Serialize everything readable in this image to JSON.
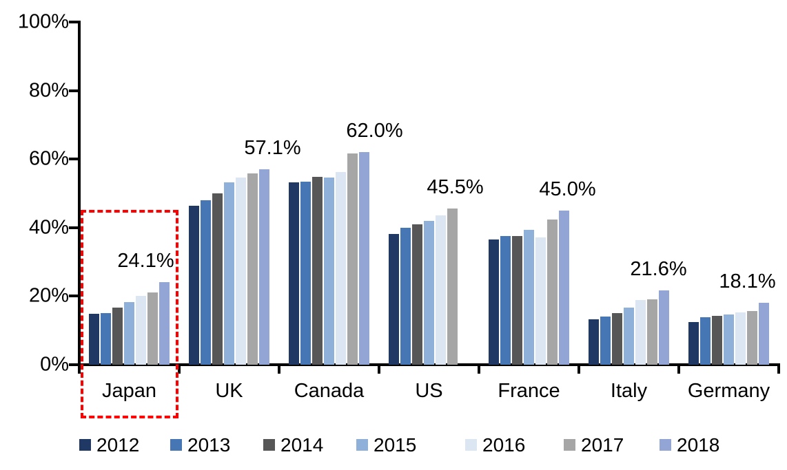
{
  "chart_data": {
    "type": "bar",
    "title": "",
    "categories": [
      "Japan",
      "UK",
      "Canada",
      "US",
      "France",
      "Italy",
      "Germany"
    ],
    "series": [
      {
        "name": "2012",
        "color": "#1F3864",
        "values": [
          14.8,
          46.4,
          53.2,
          38.2,
          36.5,
          13.3,
          12.4
        ]
      },
      {
        "name": "2013",
        "color": "#4677B4",
        "values": [
          15.0,
          47.9,
          53.5,
          40.0,
          37.6,
          14.0,
          13.8
        ]
      },
      {
        "name": "2014",
        "color": "#575757",
        "values": [
          16.6,
          50.0,
          54.9,
          40.9,
          37.5,
          15.1,
          14.2
        ]
      },
      {
        "name": "2015",
        "color": "#8FB0D8",
        "values": [
          18.2,
          53.2,
          54.6,
          42.0,
          39.3,
          16.7,
          14.6
        ]
      },
      {
        "name": "2016",
        "color": "#DCE5F2",
        "values": [
          20.0,
          54.6,
          56.2,
          43.5,
          37.2,
          18.8,
          15.3
        ]
      },
      {
        "name": "2017",
        "color": "#A6A6A6",
        "values": [
          21.1,
          55.8,
          61.6,
          45.5,
          42.4,
          19.0,
          15.7
        ]
      },
      {
        "name": "2018",
        "color": "#93A5D4",
        "values": [
          24.1,
          57.1,
          62.0,
          null,
          45.0,
          21.6,
          18.1
        ]
      }
    ],
    "value_labels": [
      "24.1%",
      "57.1%",
      "62.0%",
      "45.5%",
      "45.0%",
      "21.6%",
      "18.1%"
    ],
    "y_ticks": [
      "0%",
      "20%",
      "40%",
      "60%",
      "80%",
      "100%"
    ],
    "ylim": [
      0,
      100
    ],
    "grid": false,
    "legend": [
      "2012",
      "2013",
      "2014",
      "2015",
      "2016",
      "2017",
      "2018"
    ],
    "legend_position": "bottom",
    "highlight": {
      "category": "Japan",
      "style": "red dashed rectangle"
    },
    "colors": {
      "axis": "#000000",
      "highlight": "#FF0000",
      "background": "#FFFFFF"
    }
  }
}
